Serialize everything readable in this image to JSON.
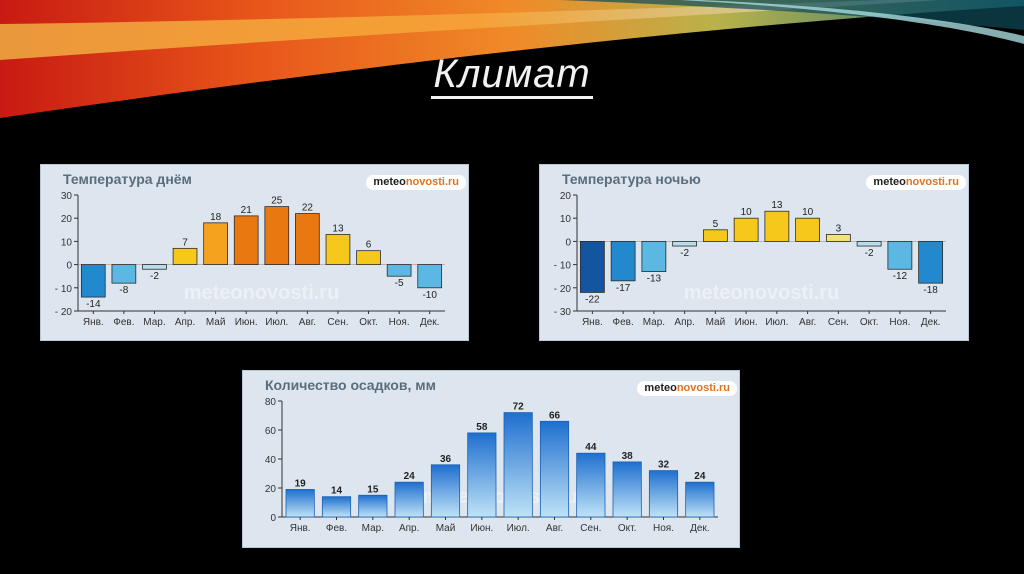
{
  "slide": {
    "title": "Климат"
  },
  "panels": [
    {
      "title": "Температура днём",
      "logo_a": "meteo",
      "logo_b": "novosti.ru",
      "watermark": "meteonovosti.ru"
    },
    {
      "title": "Температура ночью",
      "logo_a": "meteo",
      "logo_b": "novosti.ru",
      "watermark": "meteonovosti.ru"
    },
    {
      "title": "Количество осадков, мм",
      "logo_a": "meteo",
      "logo_b": "novosti.ru",
      "watermark": "meteonovosti.ru"
    }
  ],
  "chart_data": [
    {
      "type": "bar",
      "title": "Температура днём",
      "categories": [
        "Янв.",
        "Фев.",
        "Мар.",
        "Апр.",
        "Май",
        "Июн.",
        "Июл.",
        "Авг.",
        "Сен.",
        "Окт.",
        "Ноя.",
        "Дек."
      ],
      "values": [
        -14,
        -8,
        -2,
        7,
        18,
        21,
        25,
        22,
        13,
        6,
        -5,
        -10
      ],
      "ylim": [
        -20,
        30
      ],
      "yticks": [
        30,
        20,
        10,
        0,
        -10,
        -20
      ],
      "grid": false
    },
    {
      "type": "bar",
      "title": "Температура ночью",
      "categories": [
        "Янв.",
        "Фев.",
        "Мар.",
        "Апр.",
        "Май",
        "Июн.",
        "Июл.",
        "Авг.",
        "Сен.",
        "Окт.",
        "Ноя.",
        "Дек."
      ],
      "values": [
        -22,
        -17,
        -13,
        -2,
        5,
        10,
        13,
        10,
        3,
        -2,
        -12,
        -18
      ],
      "ylim": [
        -30,
        20
      ],
      "yticks": [
        20,
        10,
        0,
        -10,
        -20,
        -30
      ],
      "grid": false
    },
    {
      "type": "bar",
      "title": "Количество осадков, мм",
      "categories": [
        "Янв.",
        "Фев.",
        "Мар.",
        "Апр.",
        "Май",
        "Июн.",
        "Июл.",
        "Авг.",
        "Сен.",
        "Окт.",
        "Ноя.",
        "Дек."
      ],
      "values": [
        19,
        14,
        15,
        24,
        36,
        58,
        72,
        66,
        44,
        38,
        32,
        24
      ],
      "ylim": [
        0,
        80
      ],
      "yticks": [
        80,
        60,
        40,
        20,
        0
      ],
      "grid": false
    }
  ],
  "colors": {
    "hot": "#e8780f",
    "warm": "#f5a21e",
    "mild": "#f7c81c",
    "pale_warm": "#f3e27a",
    "pale_cold": "#b9dcea",
    "cold": "#5bb8e3",
    "colder": "#2289cf",
    "coldest": "#13559e",
    "rain_top": "#1f6fcf",
    "rain_bottom": "#bfe3f7"
  }
}
